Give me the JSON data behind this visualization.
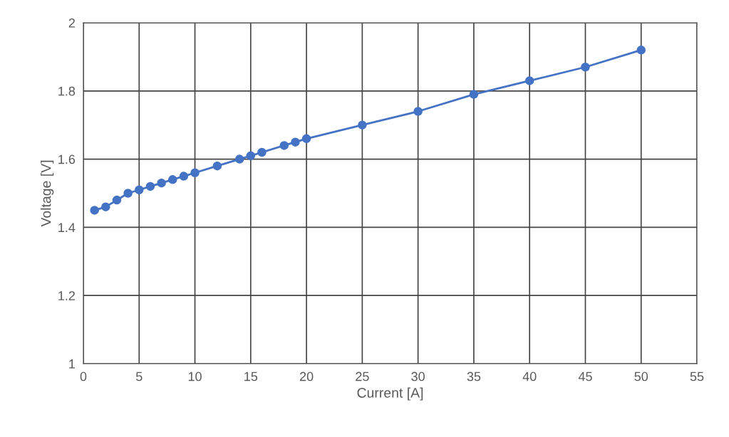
{
  "chart_data": {
    "type": "line",
    "xlabel": "Current [A]",
    "ylabel": "Voltage [V]",
    "x": [
      1,
      2,
      3,
      4,
      5,
      6,
      7,
      8,
      9,
      10,
      12,
      14,
      15,
      16,
      18,
      19,
      20,
      25,
      30,
      35,
      40,
      45,
      50
    ],
    "series": [
      {
        "color": "#4472c4",
        "values": [
          1.45,
          1.46,
          1.48,
          1.5,
          1.51,
          1.52,
          1.53,
          1.54,
          1.55,
          1.56,
          1.58,
          1.6,
          1.61,
          1.62,
          1.64,
          1.65,
          1.66,
          1.7,
          1.74,
          1.79,
          1.83,
          1.87,
          1.92
        ]
      }
    ],
    "xlim": [
      0,
      55
    ],
    "xticks": [
      0,
      5,
      10,
      15,
      20,
      25,
      30,
      35,
      40,
      45,
      50,
      55
    ],
    "ylim": [
      1,
      2
    ],
    "yticks": [
      1,
      1.2,
      1.4,
      1.6,
      1.8,
      2
    ],
    "grid": true,
    "marker": "circle",
    "line_style": "solid",
    "legend": false
  }
}
